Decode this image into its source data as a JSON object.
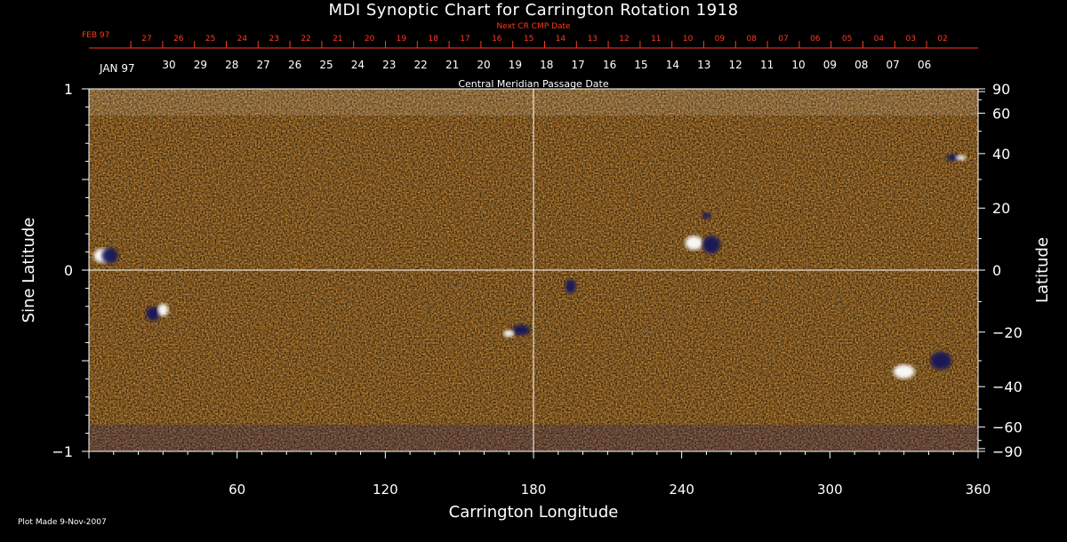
{
  "chart_data": {
    "type": "heatmap",
    "title": "MDI Synoptic Chart for Carrington Rotation 1918",
    "xlabel": "Carrington Longitude",
    "ylabel_left": "Sine Latitude",
    "ylabel_right": "Latitude",
    "xlim": [
      0,
      360
    ],
    "ylim": [
      -1,
      1
    ],
    "x_ticks": [
      "60",
      "120",
      "180",
      "240",
      "300",
      "360"
    ],
    "y_ticks_left": [
      "1",
      "0",
      "−1"
    ],
    "y_ticks_right": [
      "90",
      "60",
      "40",
      "20",
      "0",
      "−20",
      "−40",
      "−60",
      "−90"
    ],
    "next_cr_label": "Next CR CMP Date",
    "next_cr_month": "FEB 97",
    "next_cr_dates": [
      "27",
      "26",
      "25",
      "24",
      "23",
      "22",
      "21",
      "20",
      "19",
      "18",
      "17",
      "16",
      "15",
      "14",
      "13",
      "12",
      "11",
      "10",
      "09",
      "08",
      "07",
      "06",
      "05",
      "04",
      "03",
      "02"
    ],
    "cmp_label": "Central Meridian Passage Date",
    "cmp_month": "JAN 97",
    "cmp_dates": [
      "30",
      "29",
      "28",
      "27",
      "26",
      "25",
      "24",
      "23",
      "22",
      "21",
      "20",
      "19",
      "18",
      "17",
      "16",
      "15",
      "14",
      "13",
      "12",
      "11",
      "10",
      "09",
      "08",
      "07",
      "06"
    ],
    "colors": {
      "background": "#e8521a",
      "positive": "#ffffff",
      "negative": "#141458"
    }
  },
  "footer": {
    "plot_made": "Plot Made  9-Nov-2007"
  }
}
